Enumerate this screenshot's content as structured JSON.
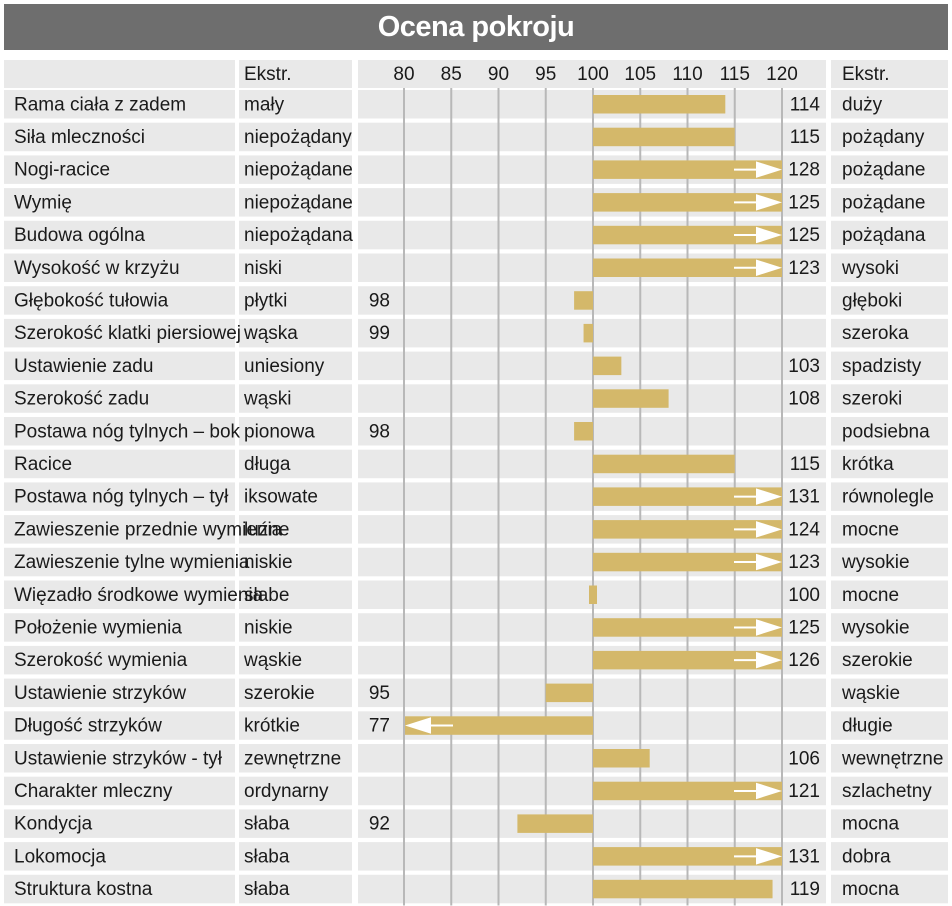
{
  "chart_data": {
    "type": "bar",
    "title": "Ocena pokroju",
    "header": {
      "left_extreme": "Ekstr.",
      "right_extreme": "Ekstr.",
      "ticks": [
        "80",
        "85",
        "90",
        "95",
        "100",
        "105",
        "110",
        "115",
        "120"
      ]
    },
    "axis": {
      "baseline": 100,
      "min": 80,
      "max": 120
    },
    "categories": [
      "Rama ciała z zadem",
      "Siła mleczności",
      "Nogi-racice",
      "Wymię",
      "Budowa ogólna",
      "Wysokość w krzyżu",
      "Głębokość tułowia",
      "Szerokość klatki piersiowej",
      "Ustawienie zadu",
      "Szerokość zadu",
      "Postawa nóg tylnych –  bok",
      "Racice",
      "Postawa nóg tylnych –  tył",
      "Zawieszenie przednie wymienia",
      "Zawieszenie tylne wymienia",
      "Więzadło środkowe wymienia",
      "Położenie wymienia",
      "Szerokość wymienia",
      "Ustawienie strzyków",
      "Długość strzyków",
      "Ustawienie strzyków - tył",
      "Charakter mleczny",
      "Kondycja",
      "Lokomocja",
      "Struktura kostna"
    ],
    "low_labels": [
      "mały",
      "niepożądany",
      "niepożądane",
      "niepożądane",
      "niepożądana",
      "niski",
      "płytki",
      "wąska",
      "uniesiony",
      "wąski",
      "pionowa",
      "długa",
      "iksowate",
      "luźne",
      "niskie",
      "słabe",
      "niskie",
      "wąskie",
      "szerokie",
      "krótkie",
      "zewnętrzne",
      "ordynarny",
      "słaba",
      "słaba",
      "słaba"
    ],
    "high_labels": [
      "duży",
      "pożądany",
      "pożądane",
      "pożądane",
      "pożądana",
      "wysoki",
      "głęboki",
      "szeroka",
      "spadzisty",
      "szeroki",
      "podsiebna",
      "krótka",
      "równolegle",
      "mocne",
      "wysokie",
      "mocne",
      "wysokie",
      "szerokie",
      "wąskie",
      "długie",
      "wewnętrzne",
      "szlachetny",
      "mocna",
      "dobra",
      "mocna"
    ],
    "values": [
      114,
      115,
      128,
      125,
      125,
      123,
      98,
      99,
      103,
      108,
      98,
      115,
      131,
      124,
      123,
      100,
      125,
      126,
      95,
      77,
      106,
      121,
      92,
      131,
      119
    ],
    "colors": {
      "bar": "#d4b86a",
      "header": "#6e6e6e",
      "band": "#e9e9e9",
      "grid": "#b8b8b8",
      "arrow": "#ffffff"
    }
  }
}
